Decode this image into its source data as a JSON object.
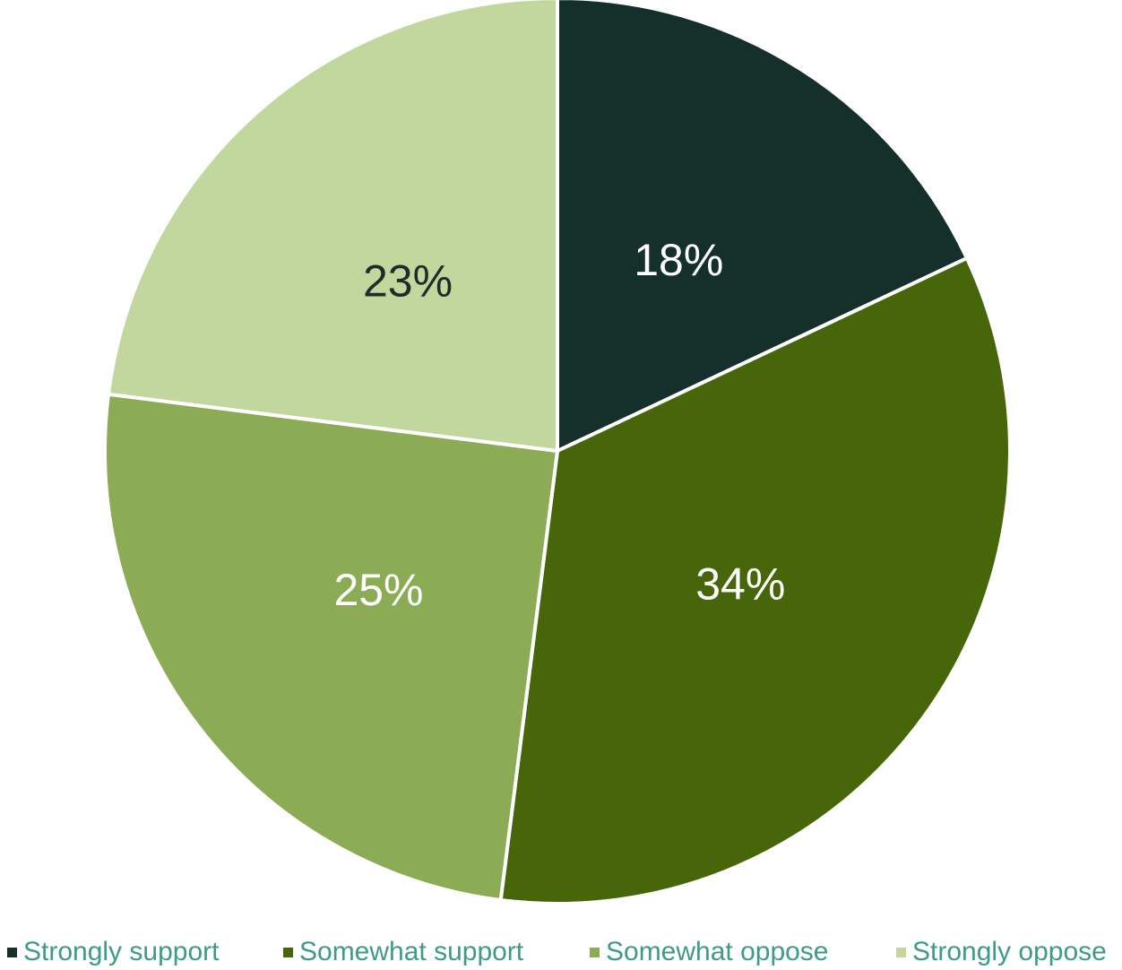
{
  "chart_data": {
    "type": "pie",
    "title": "",
    "categories": [
      "Strongly support",
      "Somewhat support",
      "Somewhat oppose",
      "Strongly oppose"
    ],
    "values": [
      18,
      34,
      25,
      23
    ],
    "data_labels": [
      "18%",
      "34%",
      "25%",
      "23%"
    ],
    "colors": [
      "#152f2a",
      "#466609",
      "#8bab55",
      "#c2d79e"
    ],
    "label_colors": [
      "#ffffff",
      "#ffffff",
      "#ffffff",
      "#1f2d2a"
    ],
    "legend": {
      "position": "bottom",
      "text_color": "#3e9a8a"
    },
    "start_angle": "12 o'clock",
    "direction": "clockwise"
  }
}
